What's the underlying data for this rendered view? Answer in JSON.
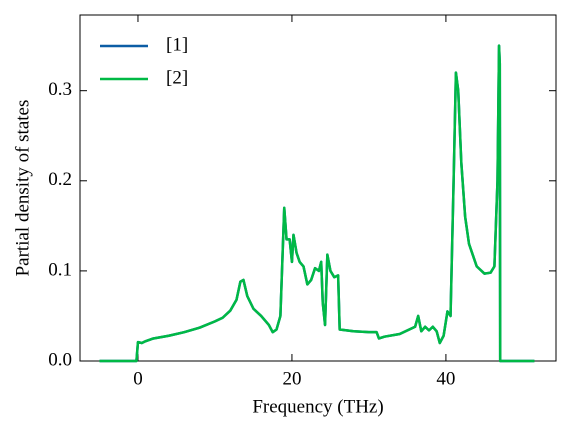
{
  "chart_data": {
    "type": "line",
    "xlabel": "Frequency (THz)",
    "ylabel": "Partial density of states",
    "x": [
      -5,
      -0.2,
      0,
      0.5,
      1,
      2,
      4,
      6,
      8,
      10,
      11,
      12,
      12.8,
      13.3,
      13.7,
      14.2,
      15,
      16,
      17,
      17.5,
      18,
      18.5,
      19,
      19.3,
      19.7,
      20,
      20.2,
      20.6,
      21,
      21.5,
      22,
      22.5,
      23,
      23.5,
      23.8,
      24,
      24.3,
      24.6,
      25,
      25.5,
      26,
      26.2,
      28,
      30,
      31,
      31.3,
      32,
      34,
      36,
      36.4,
      36.8,
      37.3,
      37.8,
      38.3,
      38.8,
      39.2,
      39.7,
      40.2,
      40.6,
      41,
      41.3,
      41.6,
      42,
      42.5,
      43,
      44,
      45,
      45.8,
      46.3,
      46.7,
      46.9,
      47,
      47.05,
      51.5
    ],
    "series": [
      {
        "name": "[1]",
        "color": "#0c5da5",
        "values": [
          0,
          0,
          0.021,
          0.02,
          0.022,
          0.025,
          0.028,
          0.032,
          0.037,
          0.044,
          0.048,
          0.056,
          0.068,
          0.088,
          0.09,
          0.072,
          0.058,
          0.05,
          0.04,
          0.032,
          0.035,
          0.05,
          0.17,
          0.135,
          0.135,
          0.11,
          0.14,
          0.12,
          0.11,
          0.105,
          0.085,
          0.09,
          0.103,
          0.1,
          0.11,
          0.065,
          0.04,
          0.118,
          0.1,
          0.093,
          0.095,
          0.035,
          0.033,
          0.032,
          0.032,
          0.025,
          0.027,
          0.03,
          0.038,
          0.05,
          0.033,
          0.038,
          0.034,
          0.038,
          0.033,
          0.02,
          0.028,
          0.055,
          0.05,
          0.2,
          0.32,
          0.3,
          0.22,
          0.16,
          0.13,
          0.105,
          0.097,
          0.098,
          0.105,
          0.2,
          0.35,
          0.33,
          0,
          0
        ]
      },
      {
        "name": "[2]",
        "color": "#00b945",
        "values": [
          0,
          0,
          0.021,
          0.02,
          0.022,
          0.025,
          0.028,
          0.032,
          0.037,
          0.044,
          0.048,
          0.056,
          0.068,
          0.088,
          0.09,
          0.072,
          0.058,
          0.05,
          0.04,
          0.032,
          0.035,
          0.05,
          0.17,
          0.135,
          0.135,
          0.11,
          0.14,
          0.12,
          0.11,
          0.105,
          0.085,
          0.09,
          0.103,
          0.1,
          0.11,
          0.065,
          0.04,
          0.118,
          0.1,
          0.093,
          0.095,
          0.035,
          0.033,
          0.032,
          0.032,
          0.025,
          0.027,
          0.03,
          0.038,
          0.05,
          0.033,
          0.038,
          0.034,
          0.038,
          0.033,
          0.02,
          0.028,
          0.055,
          0.05,
          0.2,
          0.32,
          0.3,
          0.22,
          0.16,
          0.13,
          0.105,
          0.097,
          0.098,
          0.105,
          0.2,
          0.35,
          0.33,
          0,
          0
        ]
      }
    ],
    "xlim": [
      -7.53,
      54.3
    ],
    "xticks": [
      0,
      20,
      40
    ],
    "ylim": [
      0,
      0.384
    ],
    "yticks": [
      {
        "value": 0,
        "label": "0.0"
      },
      0.1,
      0.2,
      0.3
    ],
    "legend": "upper left",
    "grid": false
  }
}
